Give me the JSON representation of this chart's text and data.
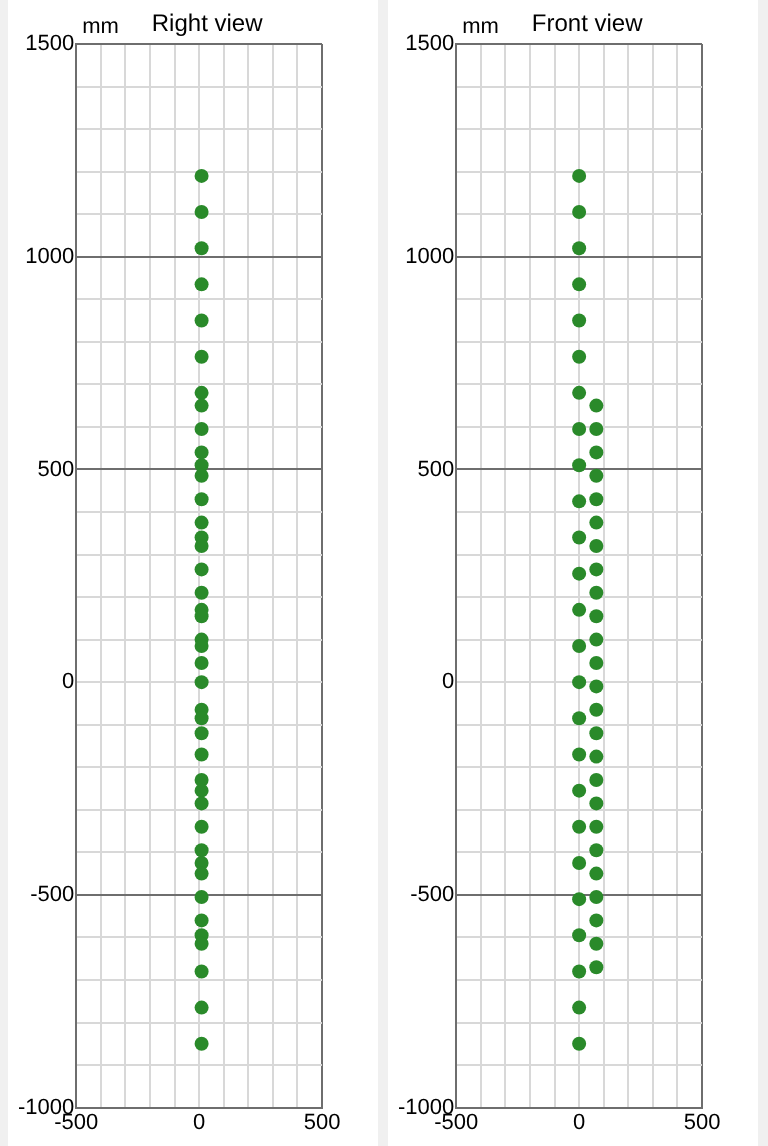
{
  "chart_data": [
    {
      "type": "scatter",
      "title": "Right view",
      "ylabel": "mm",
      "xlim": [
        -500,
        500
      ],
      "ylim": [
        -1000,
        1500
      ],
      "xticks": [
        -500,
        {
          "value": -400,
          "label": null
        },
        {
          "value": -300,
          "label": null
        },
        {
          "value": -200,
          "label": null
        },
        {
          "value": -100,
          "label": null
        },
        0,
        {
          "value": 100,
          "label": null
        },
        {
          "value": 200,
          "label": null
        },
        {
          "value": 300,
          "label": null
        },
        {
          "value": 400,
          "label": null
        },
        500
      ],
      "yticks": [
        -1000,
        {
          "value": -900,
          "label": null
        },
        {
          "value": -800,
          "label": null
        },
        {
          "value": -700,
          "label": null
        },
        {
          "value": -600,
          "label": null
        },
        -500,
        {
          "value": -400,
          "label": null
        },
        {
          "value": -300,
          "label": null
        },
        {
          "value": -200,
          "label": null
        },
        {
          "value": -100,
          "label": null
        },
        0,
        {
          "value": 100,
          "label": null
        },
        {
          "value": 200,
          "label": null
        },
        {
          "value": 300,
          "label": null
        },
        {
          "value": 400,
          "label": null
        },
        500,
        {
          "value": 600,
          "label": null
        },
        {
          "value": 700,
          "label": null
        },
        {
          "value": 800,
          "label": null
        },
        {
          "value": 900,
          "label": null
        },
        1000,
        {
          "value": 1100,
          "label": null
        },
        {
          "value": 1200,
          "label": null
        },
        {
          "value": 1300,
          "label": null
        },
        {
          "value": 1400,
          "label": null
        },
        1500
      ],
      "grid": true,
      "marker": "circle",
      "legend": false,
      "series": [
        {
          "color": "#2a8a2a",
          "x": [
            10,
            10,
            10,
            10,
            10,
            10,
            10,
            10,
            10,
            10,
            10,
            10,
            10,
            10,
            10,
            10,
            10,
            10,
            10,
            10,
            10,
            10,
            10,
            10,
            10,
            10,
            10,
            10,
            10,
            10,
            10,
            10,
            10,
            10,
            10,
            10,
            10,
            10,
            10,
            10,
            10,
            10
          ],
          "values": [
            1190,
            1105,
            1020,
            935,
            850,
            765,
            680,
            650,
            595,
            540,
            510,
            485,
            430,
            375,
            340,
            320,
            265,
            210,
            170,
            155,
            100,
            85,
            45,
            0,
            -65,
            -85,
            -120,
            -170,
            -230,
            -255,
            -285,
            -340,
            -395,
            -425,
            -450,
            -505,
            -560,
            -595,
            -615,
            -680,
            -765,
            -850
          ]
        }
      ]
    },
    {
      "type": "scatter",
      "title": "Front view",
      "ylabel": "mm",
      "xlim": [
        -500,
        500
      ],
      "ylim": [
        -1000,
        1500
      ],
      "xticks": [
        -500,
        {
          "value": -400,
          "label": null
        },
        {
          "value": -300,
          "label": null
        },
        {
          "value": -200,
          "label": null
        },
        {
          "value": -100,
          "label": null
        },
        0,
        {
          "value": 100,
          "label": null
        },
        {
          "value": 200,
          "label": null
        },
        {
          "value": 300,
          "label": null
        },
        {
          "value": 400,
          "label": null
        },
        500
      ],
      "yticks": [
        -1000,
        {
          "value": -900,
          "label": null
        },
        {
          "value": -800,
          "label": null
        },
        {
          "value": -700,
          "label": null
        },
        {
          "value": -600,
          "label": null
        },
        -500,
        {
          "value": -400,
          "label": null
        },
        {
          "value": -300,
          "label": null
        },
        {
          "value": -200,
          "label": null
        },
        {
          "value": -100,
          "label": null
        },
        0,
        {
          "value": 100,
          "label": null
        },
        {
          "value": 200,
          "label": null
        },
        {
          "value": 300,
          "label": null
        },
        {
          "value": 400,
          "label": null
        },
        500,
        {
          "value": 600,
          "label": null
        },
        {
          "value": 700,
          "label": null
        },
        {
          "value": 800,
          "label": null
        },
        {
          "value": 900,
          "label": null
        },
        1000,
        {
          "value": 1100,
          "label": null
        },
        {
          "value": 1200,
          "label": null
        },
        {
          "value": 1300,
          "label": null
        },
        {
          "value": 1400,
          "label": null
        },
        1500
      ],
      "grid": true,
      "marker": "circle",
      "legend": false,
      "series": [
        {
          "color": "#2a8a2a",
          "x": [
            0,
            0,
            0,
            0,
            0,
            0,
            0,
            0,
            0,
            0,
            0,
            0,
            0,
            0,
            0,
            0,
            0,
            0,
            0,
            0,
            0,
            0,
            0,
            0,
            0
          ],
          "values": [
            1190,
            1105,
            1020,
            935,
            850,
            765,
            680,
            595,
            510,
            425,
            340,
            255,
            170,
            85,
            0,
            -85,
            -170,
            -255,
            -340,
            -425,
            -510,
            -595,
            -680,
            -765,
            -850
          ]
        },
        {
          "color": "#2a8a2a",
          "x": [
            70,
            70,
            70,
            70,
            70,
            70,
            70,
            70,
            70,
            70,
            70,
            70,
            70,
            70,
            70,
            70,
            70,
            70,
            70,
            70,
            70,
            70,
            70,
            70,
            70
          ],
          "values": [
            650,
            595,
            540,
            485,
            430,
            375,
            320,
            265,
            210,
            155,
            100,
            45,
            -10,
            -65,
            -120,
            -175,
            -230,
            -285,
            -340,
            -395,
            -450,
            -505,
            -560,
            -615,
            -670
          ]
        }
      ]
    }
  ]
}
